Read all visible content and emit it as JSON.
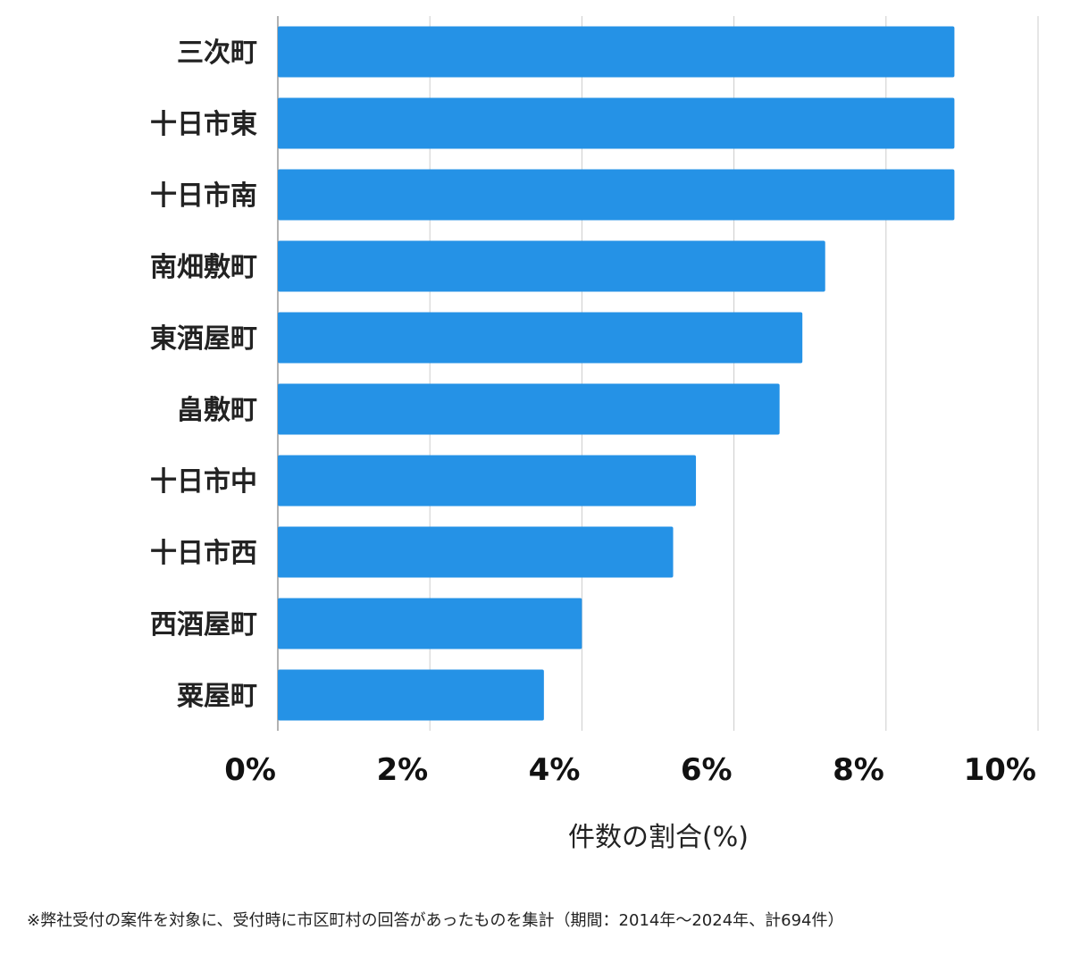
{
  "chart_data": {
    "type": "bar",
    "orientation": "horizontal",
    "categories": [
      "三次町",
      "十日市東",
      "十日市南",
      "南畑敷町",
      "東酒屋町",
      "畠敷町",
      "十日市中",
      "十日市西",
      "西酒屋町",
      "粟屋町"
    ],
    "values": [
      8.9,
      8.9,
      8.9,
      7.2,
      6.9,
      6.6,
      5.5,
      5.2,
      4.0,
      3.5
    ],
    "xlabel": "件数の割合(%)",
    "ylabel": "",
    "xlim": [
      0,
      10
    ],
    "xticks": [
      0,
      2,
      4,
      6,
      8,
      10
    ],
    "xtick_labels": [
      "0%",
      "2%",
      "4%",
      "6%",
      "8%",
      "10%"
    ],
    "grid": "vertical",
    "bar_color": "#2592e6",
    "grid_color": "#cccccc"
  },
  "footnote": "※弊社受付の案件を対象に、受付時に市区町村の回答があったものを集計（期間：2014年〜2024年、計694件）"
}
